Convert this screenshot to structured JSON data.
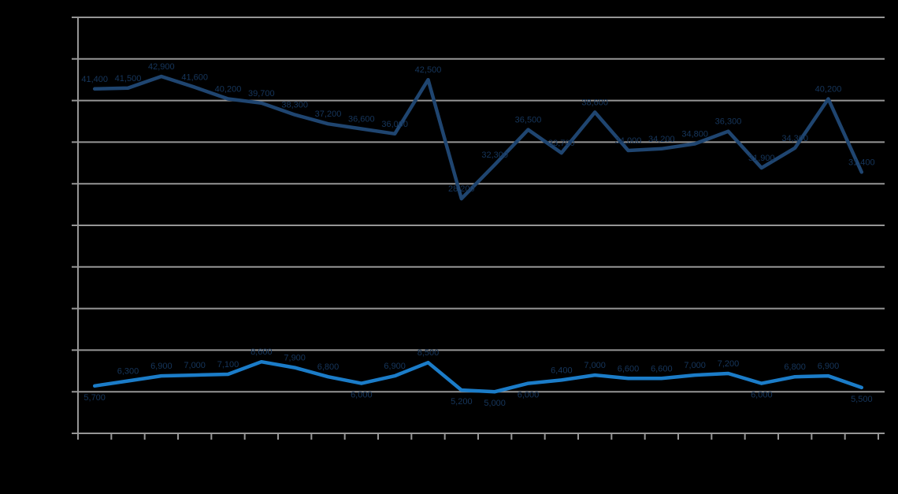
{
  "chart_data": {
    "type": "line",
    "title": "",
    "background_color": "#000000",
    "gridline_color": "#969696",
    "axis_color": "#969696",
    "label_color": "#16365C",
    "grid_on": true,
    "legend_position": "none",
    "ylim": [
      0,
      50000
    ],
    "y_gridline_step": 5000,
    "x_tick_count": 25,
    "n_points": 24,
    "data_labels_visible": true,
    "series": [
      {
        "name": "dark-blue-line",
        "color": "#1F4570",
        "values": [
          41400,
          41500,
          42900,
          41600,
          40200,
          39700,
          38300,
          37200,
          36600,
          36000,
          42500,
          28200,
          32300,
          36500,
          33700,
          38600,
          34000,
          34200,
          34800,
          36300,
          31900,
          34300,
          40200,
          31400
        ]
      },
      {
        "name": "light-blue-line",
        "color": "#1B7CC8",
        "values": [
          5700,
          6300,
          6900,
          7000,
          7100,
          8600,
          7900,
          6800,
          6000,
          6900,
          8500,
          5200,
          5000,
          6000,
          6400,
          7000,
          6600,
          6600,
          7000,
          7200,
          6000,
          6800,
          6900,
          5500
        ]
      }
    ]
  }
}
